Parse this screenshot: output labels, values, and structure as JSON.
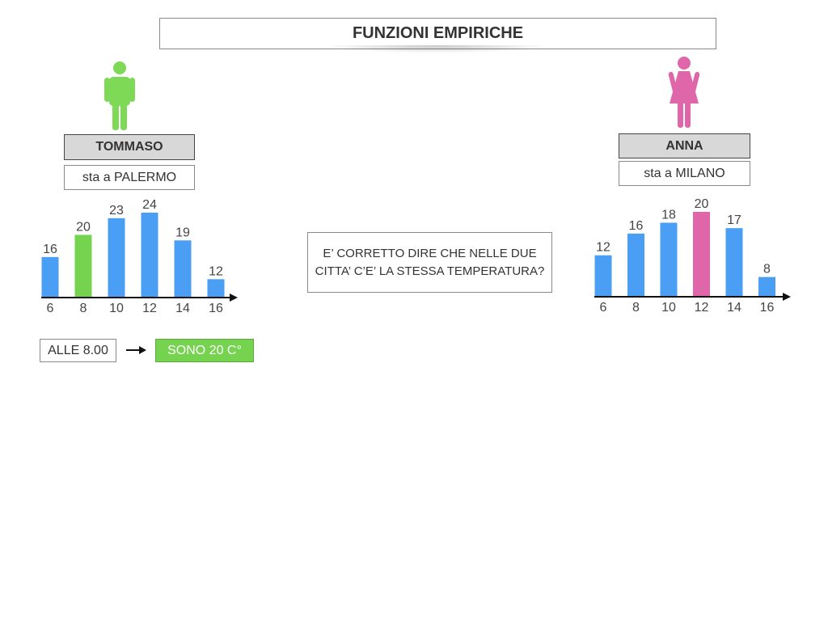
{
  "header": {
    "title": "FUNZIONI EMPIRICHE"
  },
  "left": {
    "person": "TOMMASO",
    "city": "sta a PALERMO",
    "figure_icon": "male-person-icon",
    "figure_color": "#7ed957"
  },
  "right": {
    "person": "ANNA",
    "city": "sta a MILANO",
    "figure_icon": "female-person-icon",
    "figure_color": "#e066aa"
  },
  "question": "E’ CORRETTO DIRE CHE NELLE DUE CITTA’ C’E’ LA STESSA TEMPERATURA?",
  "reading": {
    "time": "ALLE 8.00",
    "arrow_icon": "arrow-right-icon",
    "result": "SONO 20 C°",
    "result_color": "#76d34f"
  },
  "chart_data": [
    {
      "type": "bar",
      "categories": [
        "6",
        "8",
        "10",
        "12",
        "14",
        "16"
      ],
      "values": [
        16,
        20,
        23,
        24,
        19,
        12
      ],
      "data_labels": [
        "16",
        "20",
        "23",
        "24",
        "19",
        "12"
      ],
      "bar_colors": [
        "#4a9ff5",
        "#76d34f",
        "#4a9ff5",
        "#4a9ff5",
        "#4a9ff5",
        "#4a9ff5"
      ],
      "title": "",
      "xlabel": "",
      "ylabel": "",
      "ylim": [
        10,
        24
      ]
    },
    {
      "type": "bar",
      "categories": [
        "6",
        "8",
        "10",
        "12",
        "14",
        "16"
      ],
      "values": [
        12,
        16,
        18,
        20,
        17,
        8
      ],
      "data_labels": [
        "12",
        "16",
        "18",
        "20",
        "17",
        "8"
      ],
      "bar_colors": [
        "#4a9ff5",
        "#4a9ff5",
        "#4a9ff5",
        "#e066aa",
        "#4a9ff5",
        "#4a9ff5"
      ],
      "title": "",
      "xlabel": "",
      "ylabel": "",
      "ylim": [
        6,
        20
      ]
    }
  ]
}
